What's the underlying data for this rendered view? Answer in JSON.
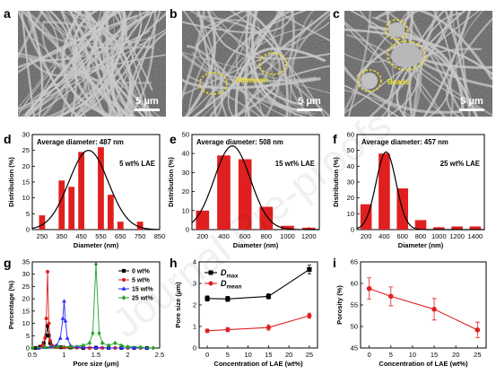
{
  "figure": {
    "panel_letters": [
      "a",
      "b",
      "c",
      "d",
      "e",
      "f",
      "g",
      "h",
      "i"
    ],
    "watermark": "Journal Pre-proofs"
  },
  "sem_images": [
    {
      "letter": "a",
      "annotation": "",
      "scale_bar": "5 μm"
    },
    {
      "letter": "b",
      "annotation": "Adhesion",
      "scale_bar": "5 μm"
    },
    {
      "letter": "c",
      "annotation": "Beads",
      "scale_bar": "5 μm"
    }
  ],
  "colors": {
    "bar": "#e02020",
    "fit": "#000000",
    "series": [
      "#000000",
      "#e02020",
      "#2a2aff",
      "#20a020"
    ],
    "sem_background": "#5a5a5a",
    "sem_fiber": "#c9c9c9",
    "sem_highlight": "#f0e020"
  },
  "chart_data": [
    {
      "panel": "d",
      "type": "bar",
      "annotation": "Average diameter: 487 nm",
      "label": "5 wt% LAE",
      "xlabel": "Diameter (nm)",
      "ylabel": "Distribution (%)",
      "categories": [
        250,
        350,
        400,
        450,
        550,
        600,
        650,
        750
      ],
      "values": [
        4.5,
        15.5,
        13.5,
        24.5,
        26,
        11,
        2.5,
        2.5
      ],
      "xlim": [
        200,
        850
      ],
      "ylim": [
        0,
        30
      ],
      "xticks": [
        250,
        350,
        450,
        550,
        650,
        750,
        850
      ],
      "yticks": [
        0,
        5,
        10,
        15,
        20,
        25,
        30
      ],
      "fit": {
        "type": "gaussian",
        "mean": 487,
        "sigma": 100,
        "amplitude": 25
      }
    },
    {
      "panel": "e",
      "type": "bar",
      "annotation": "Average diameter: 508 nm",
      "label": "15 wt% LAE",
      "xlabel": "Diameter (nm)",
      "ylabel": "Distribution (%)",
      "categories": [
        200,
        400,
        600,
        800,
        1000,
        1200
      ],
      "values": [
        10,
        39,
        37,
        12,
        2,
        1
      ],
      "xlim": [
        100,
        1300
      ],
      "ylim": [
        0,
        50
      ],
      "xticks": [
        200,
        400,
        600,
        800,
        1000,
        1200
      ],
      "yticks": [
        0,
        10,
        20,
        30,
        40,
        50
      ],
      "fit": {
        "type": "gaussian",
        "mean": 480,
        "sigma": 170,
        "amplitude": 44
      }
    },
    {
      "panel": "f",
      "type": "bar",
      "annotation": "Average diameter: 457 nm",
      "label": "25 wt% LAE",
      "xlabel": "Diameter (nm)",
      "ylabel": "Distribution (%)",
      "categories": [
        200,
        400,
        600,
        800,
        1000,
        1200,
        1400
      ],
      "values": [
        16,
        48,
        26,
        6,
        1.5,
        2,
        2
      ],
      "xlim": [
        100,
        1500
      ],
      "ylim": [
        0,
        60
      ],
      "xticks": [
        200,
        400,
        600,
        800,
        1000,
        1200,
        1400
      ],
      "yticks": [
        0,
        10,
        20,
        30,
        40,
        50,
        60
      ],
      "fit": {
        "type": "gaussian",
        "mean": 420,
        "sigma": 110,
        "amplitude": 49
      }
    },
    {
      "panel": "g",
      "type": "line",
      "xlabel": "Pore size (μm)",
      "ylabel": "Percentage (%)",
      "xlim": [
        0.5,
        2.5
      ],
      "ylim": [
        0,
        35
      ],
      "xticks": [
        0.5,
        1.0,
        1.5,
        2.0,
        2.5
      ],
      "yticks": [
        0,
        5,
        10,
        15,
        20,
        25,
        30,
        35
      ],
      "legend_position": "top-right",
      "series": [
        {
          "name": "0 wt%",
          "marker": "square",
          "x": [
            0.55,
            0.62,
            0.68,
            0.72,
            0.74,
            0.76,
            0.78,
            0.8,
            0.85,
            0.95,
            1.1,
            1.3,
            1.5,
            1.7,
            1.9,
            2.1,
            2.3
          ],
          "y": [
            0,
            0.5,
            2,
            5,
            9,
            5,
            2,
            1,
            0.5,
            0.3,
            0.2,
            0,
            0.1,
            0,
            0,
            0,
            0
          ]
        },
        {
          "name": "5 wt%",
          "marker": "circle",
          "x": [
            0.6,
            0.66,
            0.7,
            0.72,
            0.74,
            0.76,
            0.78,
            0.8,
            0.84,
            0.9,
            1.0,
            1.2,
            1.4,
            1.6,
            1.8,
            2.0,
            2.2
          ],
          "y": [
            0,
            1,
            4,
            12,
            31,
            10,
            3,
            1,
            0.5,
            0.3,
            0.2,
            0.1,
            0,
            0,
            0,
            0,
            0
          ]
        },
        {
          "name": "15 wt%",
          "marker": "triangle",
          "x": [
            0.6,
            0.7,
            0.8,
            0.88,
            0.94,
            0.98,
            1.0,
            1.02,
            1.05,
            1.1,
            1.2,
            1.3,
            1.5,
            1.7,
            1.9,
            2.1,
            2.3
          ],
          "y": [
            0,
            0.3,
            0.5,
            1,
            4,
            12,
            19,
            11,
            4,
            1,
            0.5,
            0.3,
            0.2,
            0,
            0,
            0,
            0
          ]
        },
        {
          "name": "25 wt%",
          "marker": "diamond",
          "x": [
            0.5,
            0.7,
            0.9,
            1.1,
            1.3,
            1.4,
            1.45,
            1.5,
            1.55,
            1.6,
            1.7,
            1.8,
            1.9,
            2.0,
            2.2,
            2.4
          ],
          "y": [
            0,
            0.3,
            0.5,
            0.5,
            1,
            2,
            6,
            34,
            6,
            2,
            1,
            2,
            1,
            0.5,
            0.3,
            0
          ]
        }
      ]
    },
    {
      "panel": "h",
      "type": "line",
      "xlabel": "Concentration of LAE (wt%)",
      "ylabel": "Pore size (μm)",
      "xlim": [
        -2,
        27
      ],
      "ylim": [
        0,
        4
      ],
      "xticks": [
        0,
        5,
        10,
        15,
        20,
        25
      ],
      "yticks": [
        0,
        1,
        2,
        3,
        4
      ],
      "legend_position": "top-left",
      "series": [
        {
          "name": "D",
          "sub": "max",
          "marker": "square",
          "x": [
            0,
            5,
            15,
            25
          ],
          "y": [
            2.3,
            2.28,
            2.4,
            3.65
          ],
          "err": [
            0.12,
            0.12,
            0.12,
            0.2
          ]
        },
        {
          "name": "D",
          "sub": "mean",
          "marker": "circle",
          "x": [
            0,
            5,
            15,
            25
          ],
          "y": [
            0.8,
            0.85,
            0.95,
            1.5
          ],
          "err": [
            0.08,
            0.1,
            0.12,
            0.12
          ]
        }
      ]
    },
    {
      "panel": "i",
      "type": "line",
      "xlabel": "Concentration of LAE (wt%)",
      "ylabel": "Porosity (%)",
      "xlim": [
        -2,
        27
      ],
      "ylim": [
        45,
        65
      ],
      "xticks": [
        0,
        5,
        10,
        15,
        20,
        25
      ],
      "yticks": [
        45,
        50,
        55,
        60,
        65
      ],
      "series": [
        {
          "marker": "circle",
          "x": [
            0,
            5,
            15,
            25
          ],
          "y": [
            58.8,
            57,
            54,
            49.2
          ],
          "err": [
            2.5,
            2.2,
            2.5,
            1.8
          ]
        }
      ]
    }
  ]
}
